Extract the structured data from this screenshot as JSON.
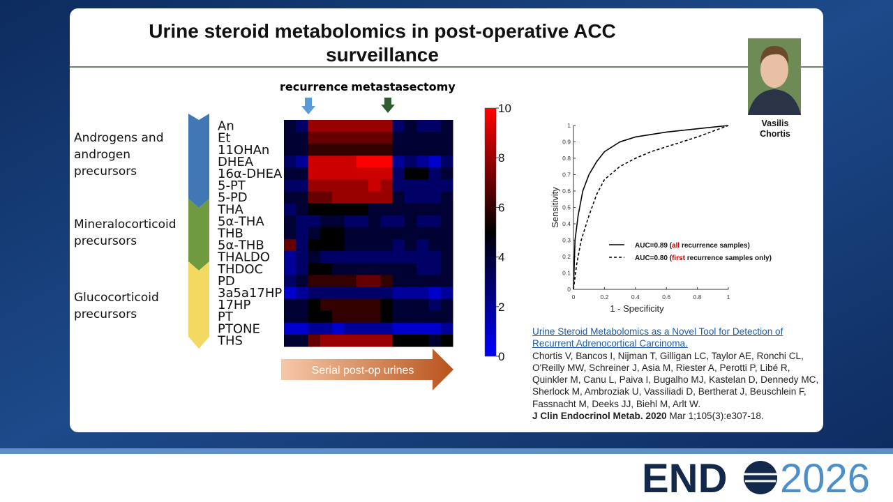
{
  "slide": {
    "title": "Urine steroid metabolomics in post-operative ACC surveillance",
    "speaker": "Vasilis Chortis",
    "groups": [
      "Androgens and androgen precursors",
      "Mineralocorticoid precursors",
      "Glucocorticoid precursors"
    ],
    "markers": [
      "recurrence",
      "metastasectomy"
    ],
    "timeline_label": "Serial post-op urines",
    "citation": {
      "title": "Urine Steroid Metabolomics as a Novel Tool for Detection of Recurrent Adrenocortical Carcinoma.",
      "authors": "Chortis V, Bancos I, Nijman T, Gilligan LC, Taylor AE, Ronchi CL, O'Reilly MW, Schreiner J, Asia M, Riester A, Perotti P, Libé R, Quinkler M, Canu L, Paiva I, Bugalho MJ, Kastelan D, Dennedy MC, Sherlock M, Ambroziak U, Vassiliadi D, Bertherat J, Beuschlein F, Fassnacht M, Deeks JJ, Biehl M, Arlt W.",
      "journal": "J Clin Endocrinol Metab. 2020",
      "details": "Mar 1;105(3):e307-18."
    },
    "logo": {
      "left": "END",
      "right": "2026"
    }
  },
  "chart_data": [
    {
      "type": "heatmap",
      "rows": [
        "An",
        "Et",
        "11OHAn",
        "DHEA",
        "16α-DHEA",
        "5-PT",
        "5-PD",
        "THA",
        "5α-THA",
        "THB",
        "5α-THB",
        "THALDO",
        "THDOC",
        "PD",
        "3a5a17HP",
        "17HP",
        "PT",
        "PTONE",
        "THS"
      ],
      "values": [
        [
          4,
          3,
          8,
          8,
          8,
          8,
          8,
          8,
          8,
          3,
          4,
          3,
          3,
          4
        ],
        [
          4,
          4,
          7,
          7,
          7,
          7,
          7,
          7,
          7,
          4,
          4,
          4,
          4,
          4
        ],
        [
          4,
          4,
          6,
          6,
          6,
          6,
          6,
          6,
          6,
          4,
          4,
          4,
          4,
          4
        ],
        [
          3,
          2,
          9,
          9,
          9,
          9,
          10,
          10,
          10,
          2,
          3,
          2,
          1,
          3
        ],
        [
          4,
          4,
          9,
          9,
          9,
          9,
          9,
          9,
          9,
          3,
          5,
          5,
          3,
          4
        ],
        [
          3,
          3,
          8,
          8,
          8,
          8,
          8,
          9,
          8,
          3,
          3,
          3,
          3,
          3
        ],
        [
          4,
          4,
          7,
          7,
          8,
          8,
          8,
          8,
          8,
          4,
          3,
          3,
          3,
          4
        ],
        [
          3,
          4,
          5,
          5,
          5,
          5,
          5,
          4,
          4,
          4,
          4,
          4,
          4,
          4
        ],
        [
          4,
          3,
          3,
          4,
          4,
          3,
          3,
          4,
          3,
          3,
          4,
          3,
          3,
          4
        ],
        [
          4,
          3,
          4,
          5,
          5,
          4,
          4,
          4,
          4,
          4,
          4,
          4,
          4,
          4
        ],
        [
          7,
          3,
          5,
          5,
          5,
          4,
          4,
          4,
          4,
          3,
          4,
          3,
          4,
          4
        ],
        [
          2,
          3,
          4,
          3,
          3,
          3,
          3,
          3,
          3,
          3,
          3,
          3,
          3,
          4
        ],
        [
          2,
          3,
          5,
          5,
          4,
          4,
          4,
          4,
          4,
          4,
          4,
          3,
          3,
          4
        ],
        [
          3,
          4,
          6,
          6,
          6,
          6,
          7,
          7,
          6,
          4,
          4,
          4,
          4,
          4
        ],
        [
          1,
          2,
          3,
          3,
          3,
          3,
          3,
          3,
          3,
          2,
          2,
          2,
          1,
          2
        ],
        [
          4,
          4,
          5,
          6,
          6,
          6,
          6,
          6,
          5,
          4,
          4,
          4,
          3,
          4
        ],
        [
          4,
          4,
          5,
          5,
          6,
          6,
          6,
          6,
          5,
          4,
          4,
          4,
          4,
          4
        ],
        [
          1,
          1,
          2,
          2,
          1,
          2,
          2,
          2,
          2,
          1,
          1,
          1,
          1,
          2
        ],
        [
          4,
          4,
          7,
          8,
          8,
          8,
          8,
          8,
          8,
          5,
          5,
          5,
          4,
          5
        ]
      ],
      "zlim": [
        0,
        10
      ],
      "zticks": [
        0,
        2,
        4,
        6,
        8,
        10
      ],
      "colors": [
        "#0000ff",
        "#000000",
        "#ff0000"
      ]
    },
    {
      "type": "line",
      "xlabel": "1 - Specificity",
      "ylabel": "Sensitivity",
      "xlim": [
        0,
        1
      ],
      "ylim": [
        0,
        1
      ],
      "xticks": [
        0,
        0.2,
        0.4,
        0.6,
        0.8,
        1
      ],
      "yticks": [
        0,
        0.1,
        0.2,
        0.3,
        0.4,
        0.5,
        0.6,
        0.7,
        0.8,
        0.9,
        1
      ],
      "highlight_color": "#c00000",
      "series": [
        {
          "name_parts": [
            "AUC=0.89 (",
            "all",
            " recurrence samples)"
          ],
          "color": "#000000",
          "dashed": false,
          "x": [
            0,
            0.01,
            0.03,
            0.06,
            0.1,
            0.15,
            0.2,
            0.3,
            0.4,
            0.6,
            0.8,
            1
          ],
          "values": [
            0,
            0.3,
            0.45,
            0.6,
            0.7,
            0.78,
            0.84,
            0.9,
            0.93,
            0.96,
            0.98,
            1
          ]
        },
        {
          "name_parts": [
            "AUC=0.80 (",
            "first",
            " recurrence samples only)"
          ],
          "color": "#000000",
          "dashed": true,
          "x": [
            0,
            0.02,
            0.05,
            0.1,
            0.15,
            0.2,
            0.3,
            0.4,
            0.5,
            0.6,
            0.8,
            1
          ],
          "values": [
            0,
            0.15,
            0.3,
            0.45,
            0.58,
            0.67,
            0.75,
            0.8,
            0.84,
            0.87,
            0.93,
            1
          ]
        }
      ]
    }
  ]
}
